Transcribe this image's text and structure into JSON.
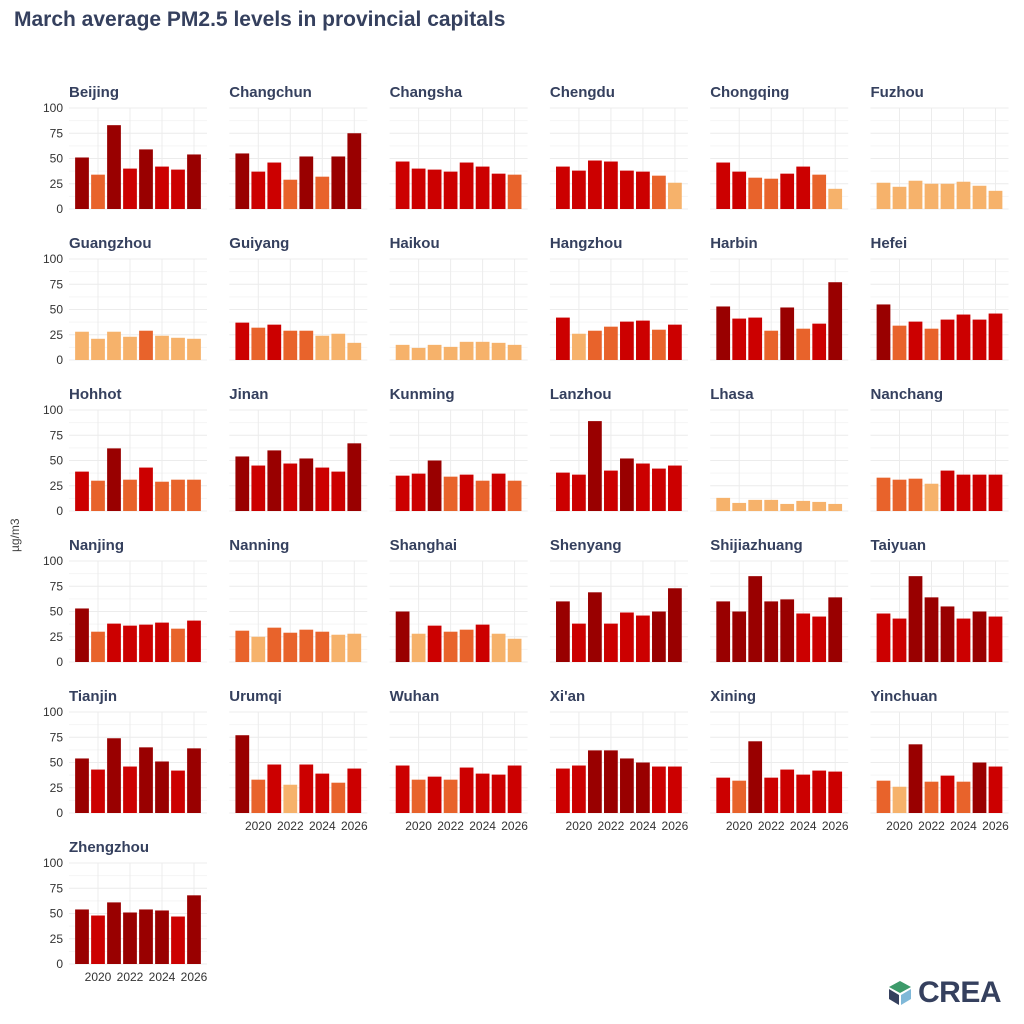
{
  "title": "March average PM2.5 levels in provincial capitals",
  "logo_text": "CREA",
  "chart_data": {
    "type": "bar",
    "layout": "small-multiples",
    "title": "March average PM2.5 levels in provincial capitals",
    "ylabel": "µg/m3",
    "xlabel": "",
    "ylim": [
      0,
      100
    ],
    "y_ticks": [
      0,
      25,
      50,
      75,
      100
    ],
    "x_ticks": [
      "2020",
      "2022",
      "2024",
      "2026"
    ],
    "years": [
      2019,
      2020,
      2021,
      2022,
      2023,
      2024,
      2025,
      2026
    ],
    "grid": true,
    "color_scale": {
      "low": "#f6b26b",
      "mid": "#e8632b",
      "high": "#cc0000",
      "very_high": "#990000"
    },
    "panels": [
      {
        "city": "Beijing",
        "values": [
          51,
          34,
          83,
          40,
          59,
          42,
          39,
          54
        ]
      },
      {
        "city": "Changchun",
        "values": [
          55,
          37,
          46,
          29,
          52,
          32,
          52,
          75
        ]
      },
      {
        "city": "Changsha",
        "values": [
          47,
          40,
          39,
          37,
          46,
          42,
          35,
          34
        ]
      },
      {
        "city": "Chengdu",
        "values": [
          42,
          38,
          48,
          47,
          38,
          37,
          33,
          26
        ]
      },
      {
        "city": "Chongqing",
        "values": [
          46,
          37,
          31,
          30,
          35,
          42,
          34,
          20
        ]
      },
      {
        "city": "Fuzhou",
        "values": [
          26,
          22,
          28,
          25,
          25,
          27,
          23,
          18
        ]
      },
      {
        "city": "Guangzhou",
        "values": [
          28,
          21,
          28,
          23,
          29,
          24,
          22,
          21
        ]
      },
      {
        "city": "Guiyang",
        "values": [
          37,
          32,
          35,
          29,
          29,
          24,
          26,
          17
        ]
      },
      {
        "city": "Haikou",
        "values": [
          15,
          12,
          15,
          13,
          18,
          18,
          17,
          15
        ]
      },
      {
        "city": "Hangzhou",
        "values": [
          42,
          26,
          29,
          33,
          38,
          39,
          30,
          35
        ]
      },
      {
        "city": "Harbin",
        "values": [
          53,
          41,
          42,
          29,
          52,
          31,
          36,
          77
        ]
      },
      {
        "city": "Hefei",
        "values": [
          55,
          34,
          38,
          31,
          40,
          45,
          40,
          46
        ]
      },
      {
        "city": "Hohhot",
        "values": [
          39,
          30,
          62,
          31,
          43,
          29,
          31,
          31
        ]
      },
      {
        "city": "Jinan",
        "values": [
          54,
          45,
          60,
          47,
          52,
          43,
          39,
          67
        ]
      },
      {
        "city": "Kunming",
        "values": [
          35,
          37,
          50,
          34,
          36,
          30,
          37,
          30
        ]
      },
      {
        "city": "Lanzhou",
        "values": [
          38,
          36,
          89,
          40,
          52,
          47,
          42,
          45
        ]
      },
      {
        "city": "Lhasa",
        "values": [
          13,
          8,
          11,
          11,
          7,
          10,
          9,
          7
        ]
      },
      {
        "city": "Nanchang",
        "values": [
          33,
          31,
          32,
          27,
          40,
          36,
          36,
          36
        ]
      },
      {
        "city": "Nanjing",
        "values": [
          53,
          30,
          38,
          36,
          37,
          39,
          33,
          41
        ]
      },
      {
        "city": "Nanning",
        "values": [
          31,
          25,
          34,
          29,
          32,
          30,
          27,
          28
        ]
      },
      {
        "city": "Shanghai",
        "values": [
          50,
          28,
          36,
          30,
          32,
          37,
          28,
          23
        ]
      },
      {
        "city": "Shenyang",
        "values": [
          60,
          38,
          69,
          38,
          49,
          46,
          50,
          73
        ]
      },
      {
        "city": "Shijiazhuang",
        "values": [
          60,
          50,
          85,
          60,
          62,
          48,
          45,
          64
        ]
      },
      {
        "city": "Taiyuan",
        "values": [
          48,
          43,
          85,
          64,
          55,
          43,
          50,
          45
        ]
      },
      {
        "city": "Tianjin",
        "values": [
          54,
          43,
          74,
          46,
          65,
          51,
          42,
          64
        ]
      },
      {
        "city": "Urumqi",
        "values": [
          77,
          33,
          48,
          28,
          48,
          39,
          30,
          44
        ]
      },
      {
        "city": "Wuhan",
        "values": [
          47,
          33,
          36,
          33,
          45,
          39,
          38,
          47
        ]
      },
      {
        "city": "Xi'an",
        "values": [
          44,
          47,
          62,
          62,
          54,
          50,
          46,
          46
        ]
      },
      {
        "city": "Xining",
        "values": [
          35,
          32,
          71,
          35,
          43,
          38,
          42,
          41
        ]
      },
      {
        "city": "Yinchuan",
        "values": [
          32,
          26,
          68,
          31,
          37,
          31,
          50,
          46
        ]
      },
      {
        "city": "Zhengzhou",
        "values": [
          54,
          48,
          61,
          51,
          54,
          53,
          47,
          68
        ]
      }
    ]
  }
}
